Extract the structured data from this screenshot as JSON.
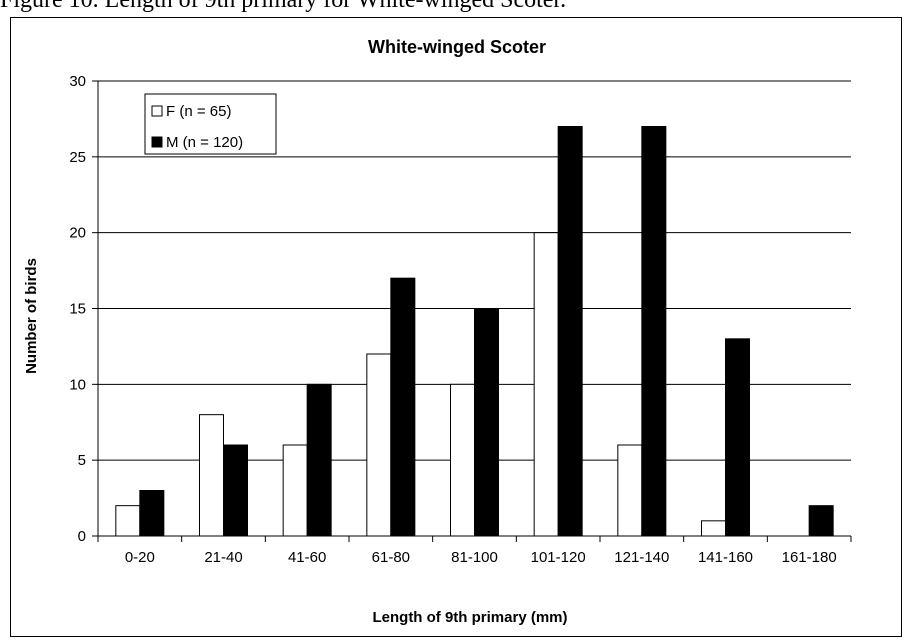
{
  "caption": "Figure 10. Length of 9th primary for White-winged Scoter.",
  "chart_data": {
    "type": "bar",
    "title": "White-winged Scoter",
    "xlabel": "Length of 9th primary (mm)",
    "ylabel": "Number of birds",
    "ylim": [
      0,
      30
    ],
    "yticks": [
      0,
      5,
      10,
      15,
      20,
      25,
      30
    ],
    "grid": true,
    "legend_position": "top-left",
    "categories": [
      "0-20",
      "21-40",
      "41-60",
      "61-80",
      "81-100",
      "101-120",
      "121-140",
      "141-160",
      "161-180"
    ],
    "series": [
      {
        "name": "F (n = 65)",
        "color": "#ffffff",
        "values": [
          2,
          8,
          6,
          12,
          10,
          20,
          6,
          1,
          0
        ]
      },
      {
        "name": "M (n = 120)",
        "color": "#000000",
        "values": [
          3,
          6,
          10,
          17,
          15,
          27,
          27,
          13,
          2
        ]
      }
    ]
  }
}
